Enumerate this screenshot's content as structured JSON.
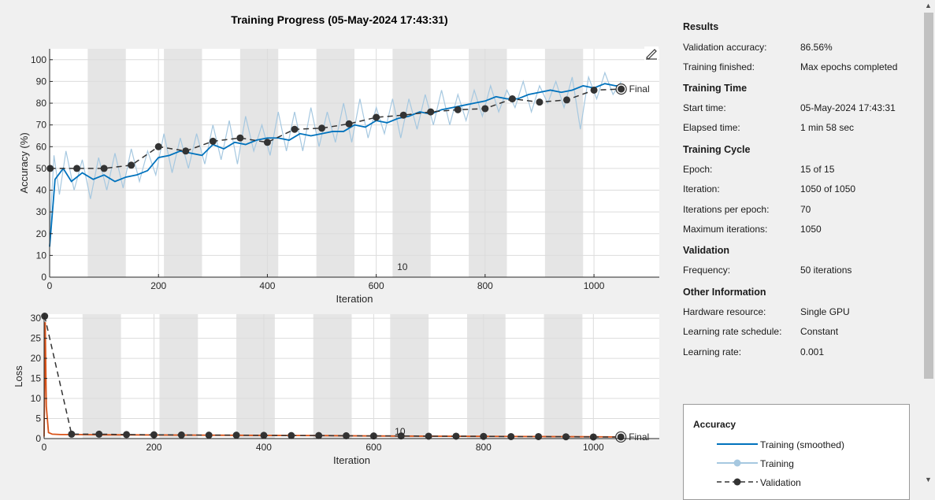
{
  "title": "Training Progress (05-May-2024 17:43:31)",
  "colors": {
    "training_smoothed": "#0072bd",
    "training_raw": "#a6c8e0",
    "loss_smoothed": "#d95319",
    "loss_raw": "#f0a98a",
    "validation": "#333333",
    "epoch_band": "#e5e5e5"
  },
  "chart_data": [
    {
      "type": "line",
      "ylabel": "Accuracy (%)",
      "xlabel": "Iteration",
      "xlim": [
        0,
        1120
      ],
      "ylim": [
        0,
        105
      ],
      "xticks": [
        0,
        200,
        400,
        600,
        800,
        1000
      ],
      "yticks": [
        0,
        10,
        20,
        30,
        40,
        50,
        60,
        70,
        80,
        90,
        100
      ],
      "epoch_label": "10",
      "final_label": "Final",
      "epochs": 15,
      "iterations_per_epoch": 70,
      "validation": {
        "name": "Validation",
        "x": [
          1,
          50,
          100,
          150,
          200,
          250,
          300,
          350,
          400,
          450,
          500,
          550,
          600,
          650,
          700,
          750,
          800,
          850,
          900,
          950,
          1000,
          1050
        ],
        "y": [
          50,
          50,
          50,
          51.5,
          60,
          58,
          62.5,
          64,
          62,
          68,
          68.5,
          70.5,
          73.5,
          74.5,
          76,
          77,
          77.5,
          82,
          80.5,
          81.5,
          86,
          86.5
        ]
      },
      "training_smoothed": {
        "name": "Training (smoothed)",
        "x": [
          0,
          10,
          25,
          40,
          60,
          80,
          100,
          120,
          140,
          160,
          180,
          200,
          220,
          240,
          260,
          280,
          300,
          320,
          340,
          360,
          380,
          400,
          420,
          440,
          460,
          480,
          500,
          520,
          540,
          560,
          580,
          600,
          620,
          640,
          660,
          680,
          700,
          720,
          740,
          760,
          780,
          800,
          820,
          840,
          860,
          880,
          900,
          920,
          940,
          960,
          980,
          1000,
          1020,
          1040,
          1050
        ],
        "y": [
          14,
          45,
          50,
          44,
          48,
          45,
          47,
          44,
          46,
          47,
          49,
          55,
          56,
          58,
          57,
          56,
          61,
          59,
          62,
          61,
          63,
          64,
          64,
          63,
          66,
          65,
          66,
          67,
          67,
          70,
          69,
          72,
          71,
          73,
          74,
          76,
          75,
          77,
          78,
          79,
          80,
          81,
          83,
          82,
          82,
          84,
          85,
          86,
          85,
          86,
          88,
          87,
          89,
          88,
          88
        ]
      },
      "training_raw": {
        "name": "Training",
        "x": [
          0,
          8,
          18,
          30,
          45,
          60,
          75,
          90,
          105,
          120,
          135,
          150,
          165,
          180,
          195,
          210,
          225,
          240,
          255,
          270,
          285,
          300,
          315,
          330,
          345,
          360,
          375,
          390,
          405,
          420,
          435,
          450,
          465,
          480,
          495,
          510,
          525,
          540,
          555,
          570,
          585,
          600,
          615,
          630,
          645,
          660,
          675,
          690,
          705,
          720,
          735,
          750,
          765,
          780,
          795,
          810,
          825,
          840,
          855,
          870,
          885,
          900,
          915,
          930,
          945,
          960,
          975,
          990,
          1005,
          1020,
          1035,
          1050
        ],
        "y": [
          20,
          56,
          38,
          58,
          40,
          54,
          36,
          55,
          40,
          57,
          41,
          59,
          44,
          58,
          47,
          66,
          48,
          64,
          50,
          66,
          52,
          70,
          54,
          72,
          52,
          74,
          58,
          70,
          56,
          76,
          58,
          76,
          58,
          78,
          60,
          76,
          62,
          80,
          62,
          82,
          64,
          78,
          66,
          82,
          64,
          82,
          68,
          84,
          70,
          86,
          70,
          84,
          72,
          86,
          74,
          88,
          76,
          86,
          78,
          90,
          76,
          88,
          80,
          90,
          78,
          92,
          68,
          92,
          82,
          94,
          84,
          90
        ]
      }
    },
    {
      "type": "line",
      "ylabel": "Loss",
      "xlabel": "Iteration",
      "xlim": [
        0,
        1120
      ],
      "ylim": [
        0,
        31
      ],
      "xticks": [
        0,
        200,
        400,
        600,
        800,
        1000
      ],
      "yticks": [
        0,
        5,
        10,
        15,
        20,
        25,
        30
      ],
      "epoch_label": "10",
      "final_label": "Final",
      "validation": {
        "name": "Validation",
        "x": [
          1,
          50,
          100,
          150,
          200,
          250,
          300,
          350,
          400,
          450,
          500,
          550,
          600,
          650,
          700,
          750,
          800,
          850,
          900,
          950,
          1000,
          1050
        ],
        "y": [
          30.5,
          1.1,
          1.1,
          1.0,
          0.95,
          0.9,
          0.85,
          0.85,
          0.8,
          0.75,
          0.75,
          0.7,
          0.65,
          0.65,
          0.6,
          0.6,
          0.55,
          0.5,
          0.5,
          0.45,
          0.4,
          0.4
        ]
      },
      "training_smoothed": {
        "name": "Training (smoothed)",
        "x": [
          0,
          2,
          4,
          8,
          15,
          30,
          60,
          100,
          200,
          300,
          400,
          500,
          600,
          700,
          800,
          900,
          1000,
          1050
        ],
        "y": [
          0.5,
          29,
          8,
          1.5,
          1.1,
          1.0,
          1.0,
          0.95,
          0.9,
          0.85,
          0.8,
          0.75,
          0.65,
          0.6,
          0.55,
          0.5,
          0.45,
          0.4
        ]
      }
    }
  ],
  "info": {
    "results_heading": "Results",
    "validation_accuracy_label": "Validation accuracy:",
    "validation_accuracy_value": "86.56%",
    "training_finished_label": "Training finished:",
    "training_finished_value": "Max epochs completed",
    "training_time_heading": "Training Time",
    "start_time_label": "Start time:",
    "start_time_value": "05-May-2024 17:43:31",
    "elapsed_time_label": "Elapsed time:",
    "elapsed_time_value": "1 min 58 sec",
    "training_cycle_heading": "Training Cycle",
    "epoch_label": "Epoch:",
    "epoch_value": "15 of 15",
    "iteration_label": "Iteration:",
    "iteration_value": "1050 of 1050",
    "ipe_label": "Iterations per epoch:",
    "ipe_value": "70",
    "max_iter_label": "Maximum iterations:",
    "max_iter_value": "1050",
    "validation_heading": "Validation",
    "frequency_label": "Frequency:",
    "frequency_value": "50 iterations",
    "other_heading": "Other Information",
    "hardware_label": "Hardware resource:",
    "hardware_value": "Single GPU",
    "lr_schedule_label": "Learning rate schedule:",
    "lr_schedule_value": "Constant",
    "lr_label": "Learning rate:",
    "lr_value": "0.001"
  },
  "legend": {
    "title": "Accuracy",
    "items": [
      "Training (smoothed)",
      "Training",
      "Validation"
    ]
  },
  "icons": {
    "export": "pencil-chart-icon"
  }
}
